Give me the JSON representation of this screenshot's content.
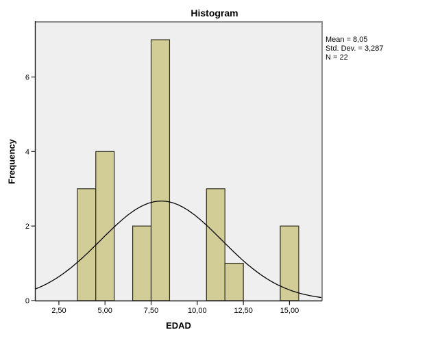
{
  "chart_data": {
    "type": "bar",
    "subtype": "histogram-with-normal-curve",
    "title": "Histogram",
    "xlabel": "EDAD",
    "ylabel": "Frequency",
    "bins": [
      {
        "x0": 3.5,
        "x1": 4.5,
        "count": 3
      },
      {
        "x0": 4.5,
        "x1": 5.5,
        "count": 4
      },
      {
        "x0": 6.5,
        "x1": 7.5,
        "count": 2
      },
      {
        "x0": 7.5,
        "x1": 8.5,
        "count": 7
      },
      {
        "x0": 10.5,
        "x1": 11.5,
        "count": 3
      },
      {
        "x0": 11.5,
        "x1": 12.5,
        "count": 1
      },
      {
        "x0": 14.5,
        "x1": 15.5,
        "count": 2
      }
    ],
    "normal_curve": {
      "mean": 8.05,
      "std_dev": 3.287,
      "n": 22,
      "bin_width": 1
    },
    "stats_box": {
      "lines": [
        "Mean = 8,05",
        "Std. Dev. = 3,287",
        "N = 22"
      ]
    },
    "x_ticks": [
      2.5,
      5.0,
      7.5,
      10.0,
      12.5,
      15.0
    ],
    "x_tick_labels": [
      "2,50",
      "5,00",
      "7,50",
      "10,00",
      "12,50",
      "15,00"
    ],
    "y_ticks": [
      0,
      2,
      4,
      6
    ],
    "y_tick_labels": [
      "0",
      "2",
      "4",
      "6"
    ],
    "xlim": [
      1.24,
      16.73
    ],
    "ylim": [
      0,
      7.46
    ],
    "grid": false,
    "legend": "none",
    "colors": {
      "bar_fill": "#d2cd96",
      "bar_border": "#2e2e1f",
      "curve": "#000000",
      "plot_bg": "#f0efef",
      "frame_gray": "#8a8a8a",
      "axis": "#1a1a1a",
      "text": "#000000"
    }
  }
}
